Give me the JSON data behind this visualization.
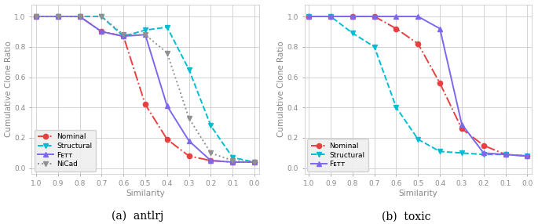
{
  "antlrj": {
    "x": [
      1.0,
      0.9,
      0.8,
      0.7,
      0.6,
      0.5,
      0.4,
      0.3,
      0.2,
      0.1,
      0.0
    ],
    "nominal": [
      1.0,
      1.0,
      1.0,
      0.9,
      0.87,
      0.42,
      0.19,
      0.08,
      0.05,
      0.04,
      0.04
    ],
    "structural": [
      1.0,
      1.0,
      1.0,
      1.0,
      0.87,
      0.91,
      0.93,
      0.65,
      0.28,
      0.07,
      0.04
    ],
    "fett": [
      1.0,
      1.0,
      1.0,
      0.9,
      0.87,
      0.88,
      0.41,
      0.18,
      0.05,
      0.04,
      0.04
    ],
    "nicad": [
      1.0,
      1.0,
      1.0,
      1.0,
      0.88,
      0.88,
      0.76,
      0.33,
      0.1,
      0.05,
      0.04
    ]
  },
  "toxic": {
    "x": [
      1.0,
      0.9,
      0.8,
      0.7,
      0.6,
      0.5,
      0.4,
      0.3,
      0.2,
      0.1,
      0.0
    ],
    "nominal": [
      1.0,
      1.0,
      1.0,
      1.0,
      0.92,
      0.82,
      0.56,
      0.26,
      0.15,
      0.09,
      0.08
    ],
    "structural": [
      1.0,
      1.0,
      0.89,
      0.8,
      0.4,
      0.19,
      0.11,
      0.1,
      0.09,
      0.09,
      0.08
    ],
    "fett": [
      1.0,
      1.0,
      1.0,
      1.0,
      1.0,
      1.0,
      0.92,
      0.29,
      0.1,
      0.09,
      0.08
    ]
  },
  "nominal_color": "#e84040",
  "structural_color": "#00bcd4",
  "fett_color": "#7b68ee",
  "nicad_color": "#909090",
  "ylabel": "Cumulative Clone Ratio",
  "xlabel": "Similarity",
  "caption_a": "(a)  antlrj",
  "caption_b": "(b)  toxic",
  "legend_labels": [
    "Nominal",
    "Structural",
    "Fᴇᴛᴛ",
    "NiCad"
  ],
  "tick_color": "#888888",
  "grid_color": "#cccccc",
  "bg_color": "#ffffff",
  "legend_bg": "#eeeeee"
}
